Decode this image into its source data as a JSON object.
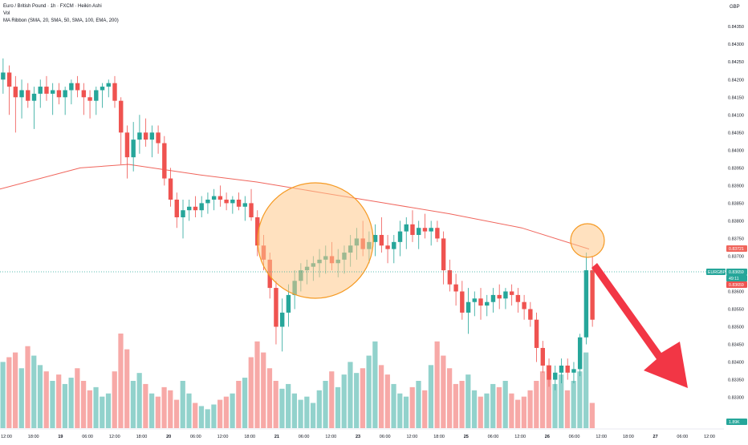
{
  "header": {
    "title_line": "Euro / British Pound · 1h · FXCM · Heikin Ashi",
    "vol_label": "Vol",
    "ma_label": "MA Ribbon (SMA, 20, SMA, 50, SMA, 100, EMA, 200)"
  },
  "price_axis": {
    "currency": "GBP",
    "ticks": [
      "0.84350",
      "0.84300",
      "0.84250",
      "0.84200",
      "0.84150",
      "0.84100",
      "0.84050",
      "0.84000",
      "0.83950",
      "0.83900",
      "0.83850",
      "0.83800",
      "0.83750",
      "0.83700",
      "0.83650",
      "0.83600",
      "0.83550",
      "0.83500",
      "0.83450",
      "0.83400",
      "0.83350",
      "0.83300"
    ],
    "ma_label": "0.83721",
    "symbol_label": "EURGBP",
    "last_price": "0.83659",
    "countdown": "49:11",
    "last_price_repeat": "0.83659",
    "volume_label": "1.89K"
  },
  "time_axis": {
    "labels": [
      "12:00",
      "18:00",
      "19",
      "06:00",
      "12:00",
      "18:00",
      "20",
      "06:00",
      "12:00",
      "18:00",
      "21",
      "06:00",
      "12:00",
      "23",
      "06:00",
      "12:00",
      "18:00",
      "25",
      "06:00",
      "12:00",
      "26",
      "06:00",
      "12:00",
      "18:00",
      "27",
      "06:00",
      "12:00"
    ]
  },
  "colors": {
    "up": "#26a69a",
    "down": "#ef5350",
    "ma200": "#f0655c",
    "highlight_fill": "#ffc98a",
    "highlight_stroke": "#f59a23",
    "arrow": "#f23645"
  },
  "chart_data": {
    "type": "candlestick",
    "symbol": "EURGBP",
    "interval": "1h",
    "ylim": [
      0.8329,
      0.8438
    ],
    "ma200": [
      [
        0,
        0.8389
      ],
      [
        100,
        0.8395
      ],
      [
        160,
        0.8396
      ],
      [
        250,
        0.8393
      ],
      [
        320,
        0.8391
      ],
      [
        400,
        0.8388
      ],
      [
        480,
        0.8385
      ],
      [
        560,
        0.8382
      ],
      [
        650,
        0.8378
      ],
      [
        734,
        0.8372
      ]
    ],
    "ohlc": [
      [
        0.842,
        0.8426,
        0.8416,
        0.8422
      ],
      [
        0.8422,
        0.8424,
        0.841,
        0.8418
      ],
      [
        0.8418,
        0.8421,
        0.8405,
        0.8415
      ],
      [
        0.8415,
        0.842,
        0.8409,
        0.8417
      ],
      [
        0.8417,
        0.8419,
        0.8412,
        0.8414
      ],
      [
        0.8414,
        0.8418,
        0.8406,
        0.8416
      ],
      [
        0.8416,
        0.842,
        0.8412,
        0.8418
      ],
      [
        0.8418,
        0.8421,
        0.8414,
        0.8416
      ],
      [
        0.8416,
        0.8419,
        0.841,
        0.8417
      ],
      [
        0.8417,
        0.8419,
        0.8413,
        0.8415
      ],
      [
        0.8415,
        0.8418,
        0.841,
        0.8417
      ],
      [
        0.8417,
        0.842,
        0.8413,
        0.8419
      ],
      [
        0.8419,
        0.8421,
        0.8415,
        0.8417
      ],
      [
        0.8417,
        0.8419,
        0.841,
        0.8415
      ],
      [
        0.8415,
        0.8417,
        0.8409,
        0.8414
      ],
      [
        0.8414,
        0.8418,
        0.841,
        0.8417
      ],
      [
        0.8417,
        0.8419,
        0.8412,
        0.8418
      ],
      [
        0.8418,
        0.842,
        0.8415,
        0.8419
      ],
      [
        0.8419,
        0.8421,
        0.8412,
        0.8414
      ],
      [
        0.8414,
        0.8415,
        0.8396,
        0.8405
      ],
      [
        0.8405,
        0.8407,
        0.8392,
        0.8398
      ],
      [
        0.8398,
        0.8408,
        0.8394,
        0.8403
      ],
      [
        0.8403,
        0.841,
        0.8399,
        0.8405
      ],
      [
        0.8405,
        0.8409,
        0.8401,
        0.8403
      ],
      [
        0.8403,
        0.8407,
        0.8398,
        0.8405
      ],
      [
        0.8405,
        0.8407,
        0.8399,
        0.8402
      ],
      [
        0.8402,
        0.8404,
        0.839,
        0.8392
      ],
      [
        0.8392,
        0.8395,
        0.8384,
        0.8386
      ],
      [
        0.8386,
        0.8388,
        0.8378,
        0.8381
      ],
      [
        0.8381,
        0.8386,
        0.8375,
        0.8383
      ],
      [
        0.8383,
        0.8386,
        0.838,
        0.8384
      ],
      [
        0.8384,
        0.8387,
        0.8381,
        0.8383
      ],
      [
        0.8383,
        0.8387,
        0.8381,
        0.8385
      ],
      [
        0.8385,
        0.8388,
        0.8382,
        0.8386
      ],
      [
        0.8386,
        0.8389,
        0.8383,
        0.8387
      ],
      [
        0.8387,
        0.839,
        0.8384,
        0.8386
      ],
      [
        0.8386,
        0.8388,
        0.8383,
        0.8385
      ],
      [
        0.8385,
        0.8387,
        0.8382,
        0.8386
      ],
      [
        0.8386,
        0.8388,
        0.8383,
        0.8384
      ],
      [
        0.8384,
        0.8387,
        0.838,
        0.8385
      ],
      [
        0.8385,
        0.8389,
        0.838,
        0.8381
      ],
      [
        0.8381,
        0.8383,
        0.837,
        0.8373
      ],
      [
        0.8373,
        0.8376,
        0.8366,
        0.8369
      ],
      [
        0.8369,
        0.8371,
        0.8358,
        0.8361
      ],
      [
        0.8361,
        0.8363,
        0.8345,
        0.835
      ],
      [
        0.835,
        0.8358,
        0.8343,
        0.8354
      ],
      [
        0.8354,
        0.8362,
        0.835,
        0.8359
      ],
      [
        0.8359,
        0.8366,
        0.8355,
        0.8363
      ],
      [
        0.8363,
        0.8368,
        0.836,
        0.8366
      ],
      [
        0.8366,
        0.8369,
        0.8362,
        0.8367
      ],
      [
        0.8367,
        0.837,
        0.8363,
        0.8368
      ],
      [
        0.8368,
        0.8372,
        0.8364,
        0.8369
      ],
      [
        0.8369,
        0.8373,
        0.8365,
        0.837
      ],
      [
        0.837,
        0.8374,
        0.8366,
        0.8368
      ],
      [
        0.8368,
        0.8372,
        0.8364,
        0.8369
      ],
      [
        0.8369,
        0.8373,
        0.8365,
        0.8371
      ],
      [
        0.8371,
        0.8376,
        0.8367,
        0.8373
      ],
      [
        0.8373,
        0.8378,
        0.8369,
        0.8375
      ],
      [
        0.8375,
        0.838,
        0.837,
        0.8372
      ],
      [
        0.8372,
        0.8377,
        0.8368,
        0.8374
      ],
      [
        0.8374,
        0.8379,
        0.837,
        0.8376
      ],
      [
        0.8376,
        0.8381,
        0.8371,
        0.8373
      ],
      [
        0.8373,
        0.8376,
        0.8368,
        0.8372
      ],
      [
        0.8372,
        0.8376,
        0.8368,
        0.8374
      ],
      [
        0.8374,
        0.838,
        0.837,
        0.8377
      ],
      [
        0.8377,
        0.8381,
        0.8372,
        0.8379
      ],
      [
        0.8379,
        0.8383,
        0.8374,
        0.8376
      ],
      [
        0.8376,
        0.838,
        0.8372,
        0.8378
      ],
      [
        0.8378,
        0.8382,
        0.8375,
        0.8377
      ],
      [
        0.8377,
        0.838,
        0.8373,
        0.8378
      ],
      [
        0.8378,
        0.838,
        0.8374,
        0.8375
      ],
      [
        0.8375,
        0.8377,
        0.8362,
        0.8366
      ],
      [
        0.8366,
        0.8369,
        0.836,
        0.8362
      ],
      [
        0.8362,
        0.8365,
        0.8356,
        0.836
      ],
      [
        0.836,
        0.8363,
        0.8352,
        0.8354
      ],
      [
        0.8354,
        0.8361,
        0.8348,
        0.8357
      ],
      [
        0.8357,
        0.836,
        0.8353,
        0.8358
      ],
      [
        0.8358,
        0.8361,
        0.8352,
        0.8356
      ],
      [
        0.8356,
        0.8359,
        0.8353,
        0.8357
      ],
      [
        0.8357,
        0.8361,
        0.8354,
        0.8359
      ],
      [
        0.8359,
        0.8362,
        0.8355,
        0.8358
      ],
      [
        0.8358,
        0.8361,
        0.8355,
        0.836
      ],
      [
        0.836,
        0.8362,
        0.8356,
        0.8359
      ],
      [
        0.8359,
        0.8361,
        0.8354,
        0.8357
      ],
      [
        0.8357,
        0.8359,
        0.8352,
        0.8355
      ],
      [
        0.8355,
        0.8357,
        0.835,
        0.8352
      ],
      [
        0.8352,
        0.8354,
        0.834,
        0.8344
      ],
      [
        0.8344,
        0.8346,
        0.8337,
        0.8339
      ],
      [
        0.8339,
        0.8341,
        0.8333,
        0.8335
      ],
      [
        0.8335,
        0.8339,
        0.8332,
        0.8337
      ],
      [
        0.8337,
        0.8341,
        0.8334,
        0.8339
      ],
      [
        0.8339,
        0.8341,
        0.8335,
        0.8337
      ],
      [
        0.8337,
        0.834,
        0.8334,
        0.8338
      ],
      [
        0.8338,
        0.8348,
        0.8336,
        0.8347
      ],
      [
        0.8347,
        0.8371,
        0.8345,
        0.8366
      ],
      [
        0.8366,
        0.837,
        0.835,
        0.8352
      ]
    ],
    "volume": [
      42,
      45,
      48,
      38,
      52,
      46,
      40,
      36,
      30,
      34,
      28,
      32,
      38,
      30,
      24,
      26,
      20,
      22,
      36,
      60,
      50,
      30,
      35,
      28,
      22,
      20,
      26,
      24,
      18,
      30,
      22,
      16,
      14,
      12,
      15,
      18,
      20,
      22,
      30,
      32,
      45,
      55,
      48,
      38,
      30,
      25,
      28,
      22,
      18,
      20,
      16,
      24,
      30,
      36,
      26,
      34,
      42,
      35,
      38,
      46,
      55,
      40,
      34,
      28,
      22,
      20,
      26,
      30,
      24,
      40,
      55,
      46,
      38,
      28,
      30,
      34,
      24,
      20,
      22,
      28,
      26,
      30,
      22,
      18,
      20,
      24,
      30,
      36,
      40,
      28,
      34,
      24,
      30,
      36,
      48,
      16
    ]
  },
  "annotations": {
    "arrow_direction": "down-right"
  }
}
